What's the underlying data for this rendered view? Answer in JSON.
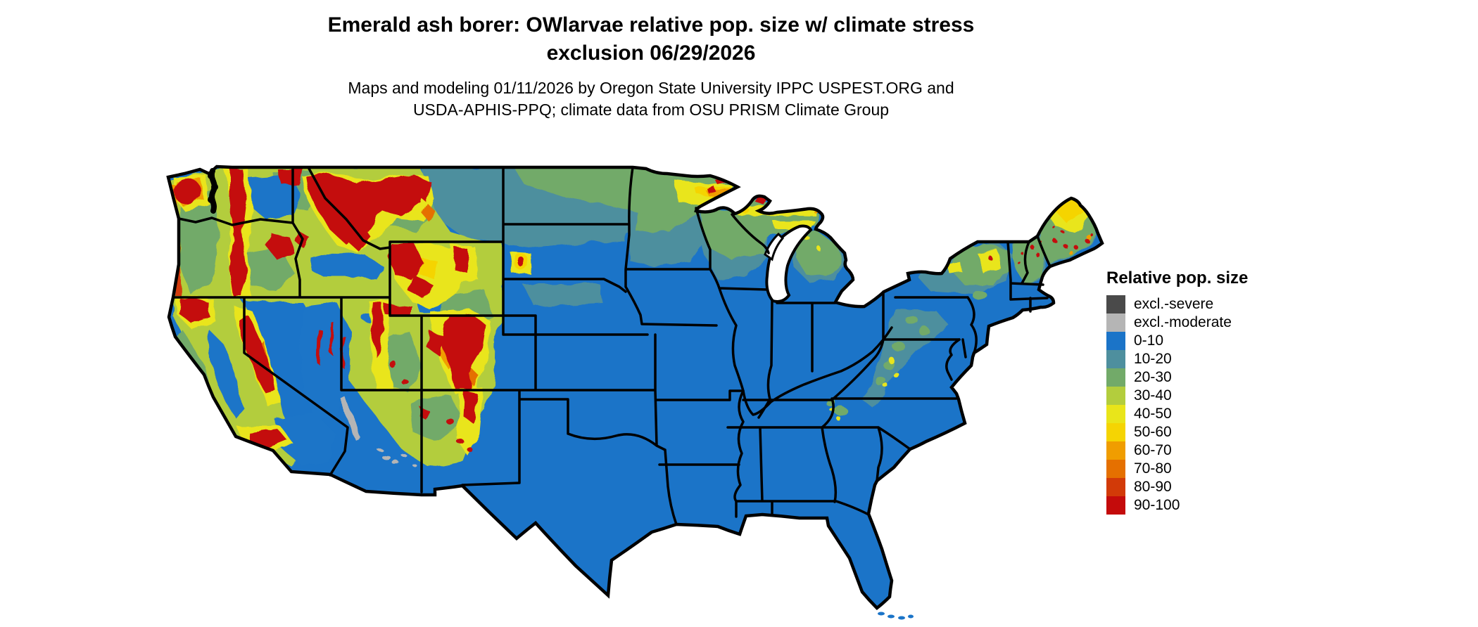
{
  "title": {
    "line1": "Emerald ash borer: OWlarvae relative pop. size w/ climate stress",
    "line2": "exclusion 06/29/2026"
  },
  "subtitle": {
    "line1": "Maps and modeling 01/11/2026 by Oregon State University IPPC USPEST.ORG and",
    "line2": "USDA-APHIS-PPQ; climate data from OSU PRISM Climate Group"
  },
  "legend": {
    "title": "Relative pop. size",
    "classes": [
      {
        "label": "excl.-severe",
        "color": "#4a4a4a"
      },
      {
        "label": "excl.-moderate",
        "color": "#b5b5b5"
      },
      {
        "label": "0-10",
        "color": "#1b74c8"
      },
      {
        "label": "10-20",
        "color": "#4e8f9e"
      },
      {
        "label": "20-30",
        "color": "#72aa69"
      },
      {
        "label": "30-40",
        "color": "#b3cd3d"
      },
      {
        "label": "40-50",
        "color": "#e9e51a"
      },
      {
        "label": "50-60",
        "color": "#f5d403"
      },
      {
        "label": "60-70",
        "color": "#f09d00"
      },
      {
        "label": "70-80",
        "color": "#e57000"
      },
      {
        "label": "80-90",
        "color": "#d23a08"
      },
      {
        "label": "90-100",
        "color": "#c40b0b"
      }
    ]
  },
  "map": {
    "region": "Contiguous United States with state boundaries",
    "extra_colors": {
      "water": "#ffffff",
      "background": "#ffffff",
      "border": "#000000",
      "base": "#1b74c8"
    }
  }
}
